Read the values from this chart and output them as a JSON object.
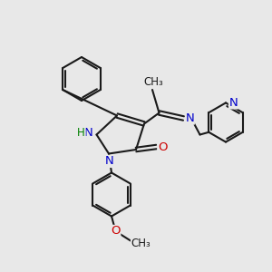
{
  "bg_color": "#e8e8e8",
  "bond_color": "#1a1a1a",
  "bond_width": 1.5,
  "N_color": "#0000cc",
  "O_color": "#cc0000",
  "H_color": "#008000",
  "figsize": [
    3.0,
    3.0
  ],
  "dpi": 100,
  "xlim": [
    0,
    10
  ],
  "ylim": [
    0,
    10
  ]
}
